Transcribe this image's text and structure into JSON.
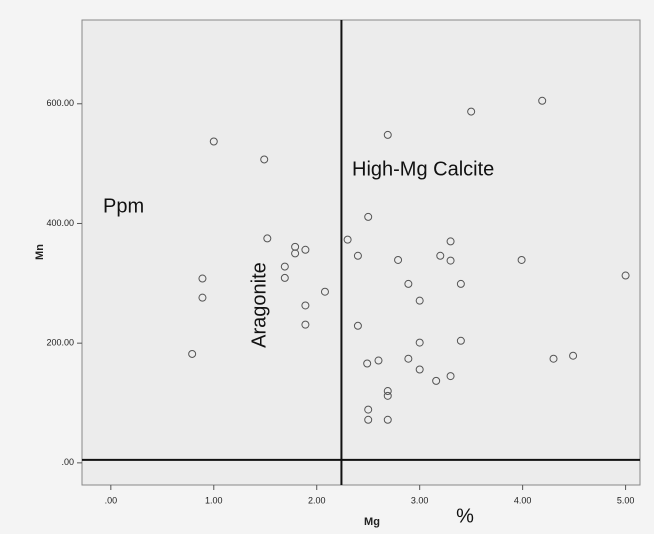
{
  "chart_data": {
    "type": "scatter",
    "x_label": "Mg",
    "y_label": "Mn",
    "annotations": [
      "High-Mg Calcite",
      "Aragonite",
      "Ppm",
      "%"
    ],
    "x": [
      1.0,
      1.49,
      3.5,
      2.69,
      4.19,
      2.5,
      2.3,
      2.4,
      2.79,
      2.89,
      3.0,
      3.2,
      3.3,
      3.3,
      3.4,
      3.99,
      5.0,
      1.52,
      1.79,
      1.89,
      1.79,
      1.69,
      1.69,
      2.08,
      0.89,
      0.89,
      1.89,
      1.89,
      0.79,
      2.4,
      3.0,
      3.4,
      2.89,
      3.0,
      2.49,
      2.6,
      3.16,
      3.3,
      2.69,
      2.69,
      2.5,
      2.5,
      2.69,
      4.3,
      4.49
    ],
    "values": [
      537,
      507,
      587,
      548,
      605,
      411,
      373,
      346,
      339,
      299,
      271,
      346,
      370,
      338,
      299,
      339,
      313,
      375,
      361,
      356,
      350,
      328,
      309,
      286,
      308,
      276,
      263,
      231,
      182,
      229,
      201,
      204,
      174,
      156,
      166,
      171,
      137,
      145,
      120,
      112,
      89,
      72,
      72,
      174,
      179
    ],
    "color": "#555555",
    "xlim": [
      -0.28,
      5.14
    ],
    "ylim": [
      -37,
      740
    ],
    "xticks": [
      {
        "value": 0,
        "label": ".00"
      },
      {
        "value": 1,
        "label": "1.00"
      },
      {
        "value": 2,
        "label": "2.00"
      },
      {
        "value": 3,
        "label": "3.00"
      },
      {
        "value": 4,
        "label": "4.00"
      },
      {
        "value": 5,
        "label": "5.00"
      }
    ],
    "yticks": [
      {
        "value": 0,
        "label": ".00"
      },
      {
        "value": 200,
        "label": "200.00"
      },
      {
        "value": 400,
        "label": "400.00"
      },
      {
        "value": 600,
        "label": "600.00"
      }
    ],
    "reference_x": 2.24,
    "reference_y": 5
  }
}
